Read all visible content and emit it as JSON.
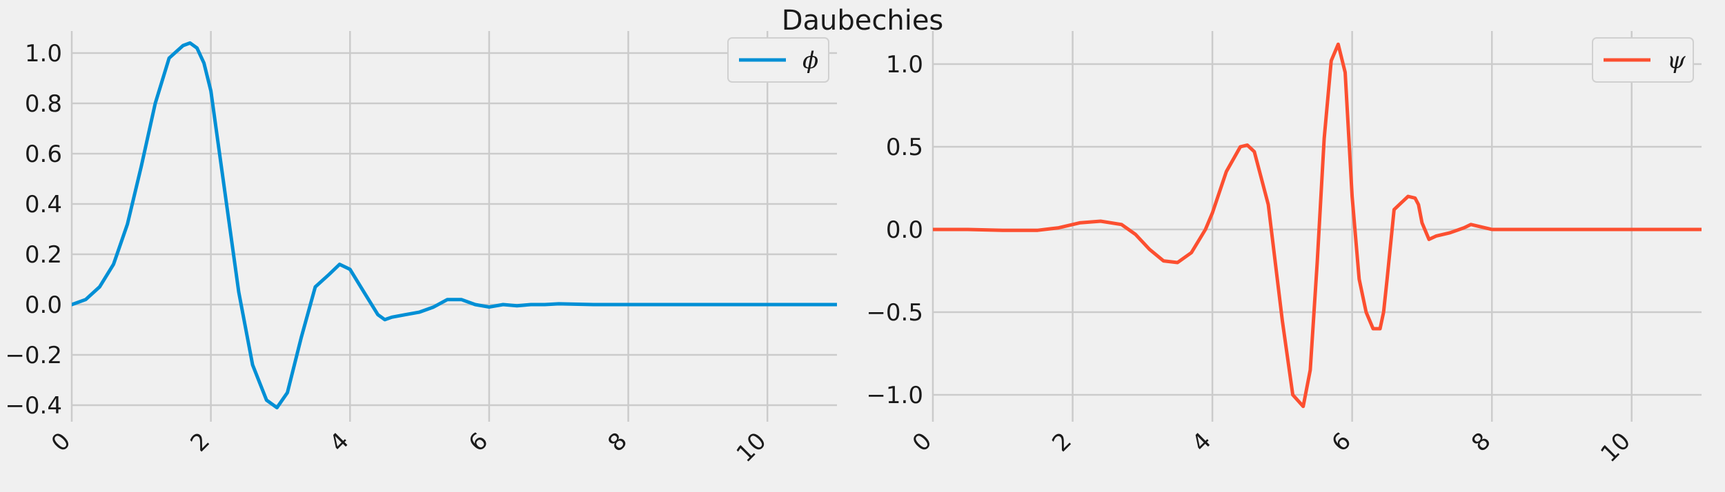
{
  "figure": {
    "title": "Daubechies"
  },
  "chart_data": [
    {
      "type": "line",
      "xlim": [
        0,
        11
      ],
      "ylim": [
        -0.45,
        1.1
      ],
      "x_ticks": [
        0,
        2,
        4,
        6,
        8,
        10
      ],
      "y_ticks": [
        -0.4,
        -0.2,
        0.0,
        0.2,
        0.4,
        0.6,
        0.8,
        1.0
      ],
      "y_tick_labels": [
        "−0.4",
        "−0.2",
        "0.0",
        "0.2",
        "0.4",
        "0.6",
        "0.8",
        "1.0"
      ],
      "grid": true,
      "legend_position": "top-right",
      "series": [
        {
          "name": "ϕ",
          "color": "#008fd5",
          "x": [
            0,
            0.2,
            0.4,
            0.6,
            0.8,
            1.0,
            1.2,
            1.4,
            1.6,
            1.7,
            1.8,
            1.9,
            2.0,
            2.2,
            2.4,
            2.6,
            2.8,
            2.95,
            3.1,
            3.3,
            3.5,
            3.7,
            3.85,
            4.0,
            4.2,
            4.4,
            4.5,
            4.6,
            4.8,
            5.0,
            5.2,
            5.4,
            5.5,
            5.6,
            5.8,
            6.0,
            6.2,
            6.4,
            6.6,
            6.8,
            7.0,
            7.5,
            8,
            9,
            10,
            11
          ],
          "y": [
            0.0,
            0.02,
            0.07,
            0.16,
            0.32,
            0.55,
            0.8,
            0.98,
            1.03,
            1.04,
            1.02,
            0.96,
            0.85,
            0.45,
            0.05,
            -0.24,
            -0.38,
            -0.41,
            -0.35,
            -0.13,
            0.07,
            0.12,
            0.16,
            0.14,
            0.05,
            -0.04,
            -0.06,
            -0.05,
            -0.04,
            -0.03,
            -0.01,
            0.02,
            0.02,
            0.02,
            0.0,
            -0.01,
            0.0,
            -0.005,
            0.0,
            0.0,
            0.003,
            0.0,
            0.0,
            0.0,
            0.0,
            0.0
          ]
        }
      ]
    },
    {
      "type": "line",
      "xlim": [
        0,
        11
      ],
      "ylim": [
        -1.15,
        1.2
      ],
      "x_ticks": [
        0,
        2,
        4,
        6,
        8,
        10
      ],
      "y_ticks": [
        -1.0,
        -0.5,
        0.0,
        0.5,
        1.0
      ],
      "y_tick_labels": [
        "−1.0",
        "−0.5",
        "0.0",
        "0.5",
        "1.0"
      ],
      "grid": true,
      "legend_position": "top-right",
      "series": [
        {
          "name": "ψ",
          "color": "#fc4f30",
          "x": [
            0,
            0.5,
            1.0,
            1.5,
            1.8,
            2.1,
            2.4,
            2.7,
            2.9,
            3.1,
            3.3,
            3.5,
            3.7,
            3.9,
            4.0,
            4.2,
            4.4,
            4.5,
            4.6,
            4.8,
            5.0,
            5.15,
            5.3,
            5.4,
            5.5,
            5.6,
            5.7,
            5.8,
            5.9,
            6.0,
            6.1,
            6.2,
            6.3,
            6.4,
            6.45,
            6.5,
            6.6,
            6.7,
            6.8,
            6.9,
            6.95,
            7.0,
            7.1,
            7.2,
            7.3,
            7.4,
            7.6,
            7.7,
            7.8,
            8.0,
            8.2,
            8.4,
            9.0,
            10.0,
            11.0
          ],
          "y": [
            0.0,
            0.0,
            -0.005,
            -0.005,
            0.01,
            0.04,
            0.05,
            0.03,
            -0.03,
            -0.12,
            -0.19,
            -0.2,
            -0.14,
            0.0,
            0.1,
            0.35,
            0.5,
            0.51,
            0.47,
            0.15,
            -0.55,
            -1.0,
            -1.07,
            -0.85,
            -0.2,
            0.55,
            1.02,
            1.12,
            0.95,
            0.2,
            -0.3,
            -0.5,
            -0.6,
            -0.6,
            -0.5,
            -0.3,
            0.12,
            0.16,
            0.2,
            0.19,
            0.15,
            0.04,
            -0.06,
            -0.04,
            -0.03,
            -0.02,
            0.01,
            0.03,
            0.02,
            0.0,
            0.0,
            0.0,
            0.0,
            0.0,
            0.0
          ]
        }
      ]
    }
  ]
}
